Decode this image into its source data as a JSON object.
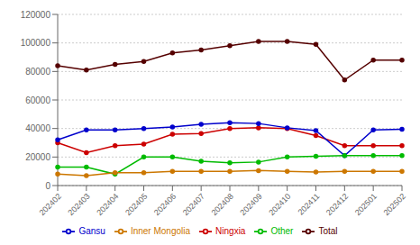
{
  "chart_data": {
    "type": "line",
    "categories": [
      "202402",
      "202403",
      "202404",
      "202405",
      "202406",
      "202407",
      "202408",
      "202409",
      "202410",
      "202411",
      "202412",
      "202501",
      "202502"
    ],
    "series": [
      {
        "name": "Ningxia",
        "color": "#cc0000",
        "values": [
          30000,
          23000,
          28000,
          29000,
          36000,
          36500,
          40000,
          40500,
          40000,
          35000,
          28000,
          28000,
          28000
        ]
      },
      {
        "name": "Gansu",
        "color": "#0000cc",
        "values": [
          32000,
          39000,
          39000,
          40000,
          41000,
          43000,
          44000,
          43500,
          40500,
          38500,
          21000,
          39000,
          39500
        ]
      },
      {
        "name": "Other",
        "color": "#00bb00",
        "values": [
          13000,
          13000,
          8000,
          20000,
          20000,
          17000,
          16000,
          16500,
          20000,
          20500,
          21000,
          21000,
          21000
        ]
      },
      {
        "name": "Inner Mongolia",
        "color": "#cc7700",
        "values": [
          8000,
          7000,
          9000,
          9000,
          10000,
          10000,
          10000,
          10500,
          10000,
          9500,
          10000,
          10000,
          10000
        ]
      },
      {
        "name": "Total",
        "color": "#550000",
        "values": [
          84000,
          81000,
          85000,
          87000,
          93000,
          95000,
          98000,
          101000,
          101000,
          99000,
          74000,
          88000,
          88000
        ]
      }
    ],
    "ylim": [
      0,
      120000
    ],
    "yticks": [
      0,
      20000,
      40000,
      60000,
      80000,
      100000,
      120000
    ],
    "grid": true,
    "legend": "bottom",
    "marker": "circle"
  }
}
